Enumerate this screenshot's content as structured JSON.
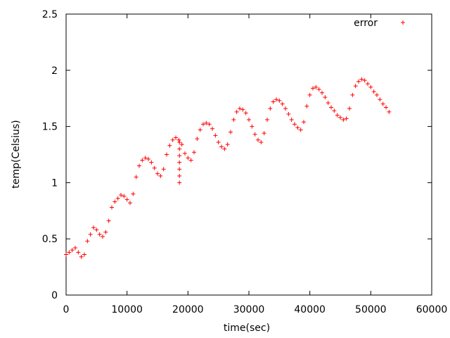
{
  "chart_data": {
    "type": "scatter",
    "title": "",
    "xlabel": "time(sec)",
    "ylabel": "temp(Celsius)",
    "xlim": [
      0,
      60000
    ],
    "ylim": [
      0,
      2.5
    ],
    "x_ticks": [
      0,
      10000,
      20000,
      30000,
      40000,
      50000,
      60000
    ],
    "x_tick_labels": [
      "0",
      "10000",
      "20000",
      "30000",
      "40000",
      "50000",
      "60000"
    ],
    "y_ticks": [
      0,
      0.5,
      1,
      1.5,
      2,
      2.5
    ],
    "y_tick_labels": [
      "0",
      "0.5",
      "1",
      "1.5",
      "2",
      "2.5"
    ],
    "grid": false,
    "legend_position": "top-right",
    "series": [
      {
        "name": "error",
        "color": "#ff0000",
        "marker": "plus",
        "x": [
          0,
          500,
          1000,
          1500,
          2000,
          2500,
          3000,
          3500,
          4000,
          4500,
          5000,
          5500,
          6000,
          6500,
          7000,
          7500,
          8000,
          8500,
          9000,
          9500,
          10000,
          10500,
          11000,
          11500,
          12000,
          12500,
          13000,
          13500,
          14000,
          14500,
          15000,
          15500,
          16000,
          16500,
          17000,
          17500,
          18000,
          18500,
          19000,
          19500,
          20000,
          20500,
          21000,
          21500,
          22000,
          22500,
          23000,
          23500,
          24000,
          24500,
          25000,
          25500,
          26000,
          26500,
          27000,
          27500,
          28000,
          28500,
          29000,
          29500,
          30000,
          30500,
          31000,
          31500,
          32000,
          32500,
          33000,
          33500,
          34000,
          34500,
          35000,
          35500,
          36000,
          36500,
          37000,
          37500,
          38000,
          38500,
          39000,
          39500,
          40000,
          40500,
          41000,
          41500,
          42000,
          42500,
          43000,
          43500,
          44000,
          44500,
          45000,
          45500,
          46000,
          46500,
          47000,
          47500,
          48000,
          48500,
          49000,
          49500,
          50000,
          50500,
          51000,
          51500,
          52000,
          52500,
          53000,
          18600,
          18600,
          18600,
          18600,
          18600,
          18600,
          18600
        ],
        "y": [
          0.36,
          0.38,
          0.4,
          0.42,
          0.38,
          0.34,
          0.36,
          0.48,
          0.54,
          0.6,
          0.58,
          0.54,
          0.52,
          0.56,
          0.66,
          0.78,
          0.83,
          0.86,
          0.89,
          0.88,
          0.85,
          0.82,
          0.9,
          1.05,
          1.15,
          1.2,
          1.22,
          1.21,
          1.18,
          1.13,
          1.08,
          1.06,
          1.12,
          1.25,
          1.33,
          1.38,
          1.4,
          1.38,
          1.34,
          1.26,
          1.22,
          1.2,
          1.27,
          1.39,
          1.47,
          1.52,
          1.53,
          1.52,
          1.48,
          1.42,
          1.36,
          1.32,
          1.3,
          1.34,
          1.45,
          1.56,
          1.63,
          1.66,
          1.65,
          1.62,
          1.56,
          1.5,
          1.43,
          1.38,
          1.36,
          1.44,
          1.56,
          1.66,
          1.72,
          1.74,
          1.73,
          1.7,
          1.66,
          1.61,
          1.56,
          1.52,
          1.49,
          1.47,
          1.54,
          1.68,
          1.78,
          1.84,
          1.85,
          1.83,
          1.8,
          1.76,
          1.71,
          1.67,
          1.64,
          1.6,
          1.58,
          1.56,
          1.57,
          1.66,
          1.78,
          1.86,
          1.9,
          1.92,
          1.91,
          1.88,
          1.85,
          1.81,
          1.78,
          1.74,
          1.7,
          1.67,
          1.63,
          1.0,
          1.06,
          1.12,
          1.18,
          1.24,
          1.3,
          1.36
        ]
      }
    ]
  }
}
